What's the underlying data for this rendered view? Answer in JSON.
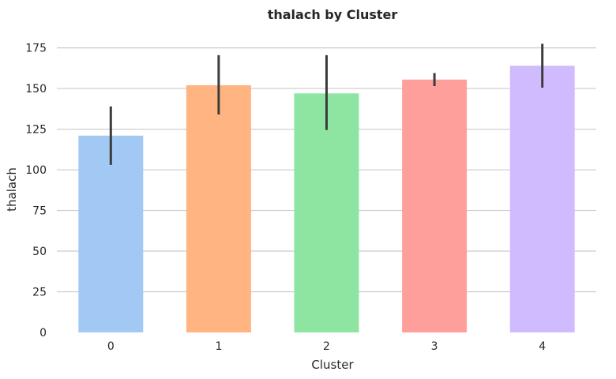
{
  "chart_data": {
    "type": "bar",
    "title": "thalach by Cluster",
    "xlabel": "Cluster",
    "ylabel": "thalach",
    "categories": [
      "0",
      "1",
      "2",
      "3",
      "4"
    ],
    "values": [
      121,
      152,
      147,
      155.5,
      164
    ],
    "error_low": [
      103,
      134,
      124.5,
      151.5,
      150.5
    ],
    "error_high": [
      139,
      170.5,
      170.5,
      159.5,
      177.5
    ],
    "colors": [
      "#a1c9f4",
      "#ffb482",
      "#8de5a1",
      "#ff9f9b",
      "#d0bbff"
    ],
    "ylim": [
      0,
      185
    ],
    "yticks": [
      0,
      25,
      50,
      75,
      100,
      125,
      150,
      175
    ],
    "grid": true,
    "legend": "none"
  }
}
